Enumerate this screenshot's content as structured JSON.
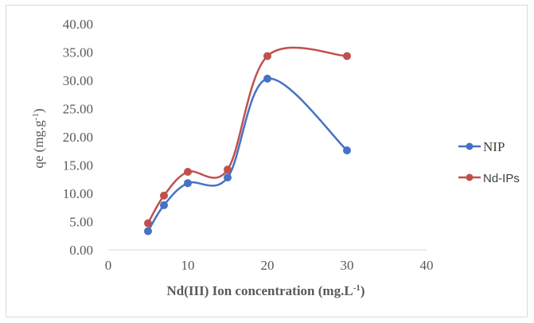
{
  "chart_data": {
    "type": "line",
    "title": "",
    "xlabel": "Nd(III) Ion concentration (mg.L-1)",
    "ylabel": "qe (mg.g-1)",
    "xlim": [
      0,
      40
    ],
    "ylim": [
      0,
      40
    ],
    "x_ticks": [
      "0",
      "10",
      "20",
      "30",
      "40"
    ],
    "y_ticks": [
      "0.00",
      "5.00",
      "10.00",
      "15.00",
      "20.00",
      "25.00",
      "30.00",
      "35.00",
      "40.00"
    ],
    "x": [
      5,
      7,
      10,
      15,
      20,
      30
    ],
    "smoothed": true,
    "grid": false,
    "legend_position": "right",
    "series": [
      {
        "name": "NIP",
        "color": "#4472c4",
        "values": [
          3.3,
          7.9,
          11.8,
          12.8,
          30.3,
          17.6
        ]
      },
      {
        "name": "Nd-IPs",
        "color": "#c0504d",
        "values": [
          4.7,
          9.6,
          13.8,
          14.2,
          34.3,
          34.3
        ]
      }
    ]
  }
}
